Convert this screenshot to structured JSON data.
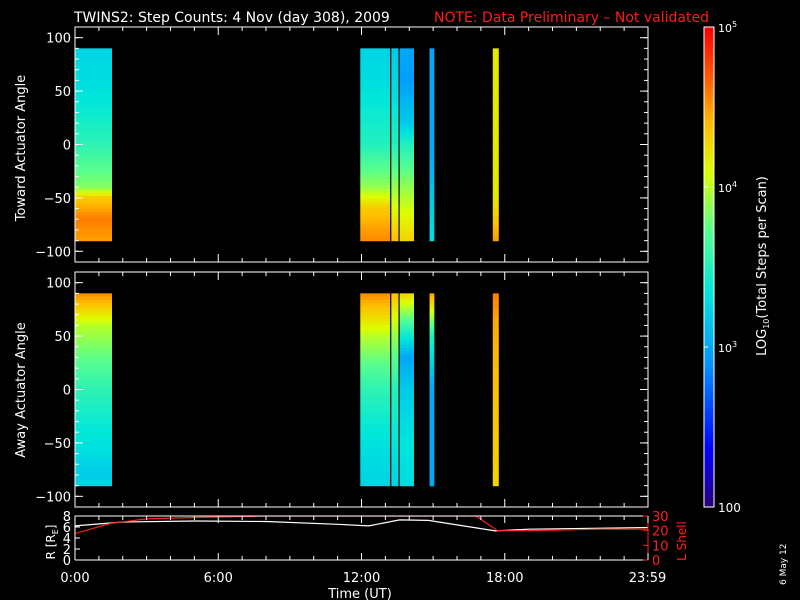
{
  "title": {
    "main": "TWINS2: Step Counts:  4 Nov (day 308), 2009",
    "note": "NOTE: Data Preliminary – Not validated",
    "note_color": "#ff1a1a"
  },
  "side_date": "6 May 12",
  "colors": {
    "background": "#000000",
    "axes": "#ffffff",
    "lshell": "#ff2020",
    "radius": "#ffffff"
  },
  "colorbar": {
    "label": "LOG10(Total Steps per Scan)",
    "label_prefix": "LOG",
    "label_sub": "10",
    "label_suffix": "(Total Steps per Scan)",
    "ticks": [
      {
        "label": "100",
        "value": 100
      },
      {
        "label": "10^3",
        "value": 1000
      },
      {
        "label": "10^4",
        "value": 10000
      },
      {
        "label": "10^5",
        "value": 100000
      }
    ],
    "scale": "log",
    "range": [
      100,
      100000
    ],
    "colormap": "rainbow"
  },
  "chart_data": [
    {
      "type": "heatmap",
      "panel": "top",
      "ylabel": "Toward Actuator Angle",
      "ylim": [
        -110,
        110
      ],
      "yticks": [
        "100",
        "50",
        "0",
        "−50",
        "−100"
      ],
      "ytick_values": [
        100,
        50,
        0,
        -50,
        -100
      ],
      "xlim_hours": [
        0,
        24
      ],
      "angle_range": [
        -88,
        90
      ],
      "intervals": [
        {
          "start": 0.0,
          "end": 1.55,
          "profile": [
            [
              90,
              3.25
            ],
            [
              60,
              3.3
            ],
            [
              30,
              3.4
            ],
            [
              0,
              3.55
            ],
            [
              -20,
              3.7
            ],
            [
              -40,
              3.85
            ],
            [
              -50,
              4.35
            ],
            [
              -70,
              4.6
            ],
            [
              -88,
              4.5
            ]
          ]
        },
        {
          "start": 11.95,
          "end": 13.2,
          "profile": [
            [
              90,
              3.25
            ],
            [
              60,
              3.3
            ],
            [
              30,
              3.4
            ],
            [
              0,
              3.5
            ],
            [
              -20,
              3.7
            ],
            [
              -40,
              3.9
            ],
            [
              -60,
              4.35
            ],
            [
              -88,
              4.55
            ]
          ]
        },
        {
          "start": 13.25,
          "end": 13.55,
          "profile": [
            [
              90,
              3.2
            ],
            [
              50,
              3.3
            ],
            [
              0,
              3.5
            ],
            [
              -40,
              3.9
            ],
            [
              -88,
              4.4
            ]
          ]
        },
        {
          "start": 13.6,
          "end": 14.2,
          "profile": [
            [
              90,
              3.0
            ],
            [
              60,
              2.95
            ],
            [
              20,
              3.2
            ],
            [
              0,
              3.5
            ],
            [
              -40,
              3.9
            ],
            [
              -88,
              4.3
            ]
          ]
        },
        {
          "start": 14.85,
          "end": 15.05,
          "profile": [
            [
              90,
              3.0
            ],
            [
              0,
              3.0
            ],
            [
              -88,
              3.3
            ]
          ]
        },
        {
          "start": 17.5,
          "end": 17.75,
          "profile": [
            [
              90,
              4.2
            ],
            [
              -50,
              4.2
            ],
            [
              -88,
              4.5
            ]
          ]
        }
      ]
    },
    {
      "type": "heatmap",
      "panel": "middle",
      "ylabel": "Away Actuator Angle",
      "ylim": [
        -110,
        110
      ],
      "yticks": [
        "100",
        "50",
        "0",
        "−50",
        "−100"
      ],
      "ytick_values": [
        100,
        50,
        0,
        -50,
        -100
      ],
      "xlim_hours": [
        0,
        24
      ],
      "angle_range": [
        -90,
        90
      ],
      "intervals": [
        {
          "start": 0.0,
          "end": 1.55,
          "profile": [
            [
              90,
              4.55
            ],
            [
              75,
              4.3
            ],
            [
              60,
              4.0
            ],
            [
              30,
              3.75
            ],
            [
              0,
              3.55
            ],
            [
              -30,
              3.4
            ],
            [
              -60,
              3.3
            ],
            [
              -80,
              3.2
            ],
            [
              -90,
              3.25
            ]
          ]
        },
        {
          "start": 11.95,
          "end": 13.2,
          "profile": [
            [
              90,
              4.55
            ],
            [
              70,
              4.3
            ],
            [
              50,
              4.0
            ],
            [
              20,
              3.7
            ],
            [
              0,
              3.55
            ],
            [
              -30,
              3.4
            ],
            [
              -60,
              3.3
            ],
            [
              -90,
              3.25
            ]
          ]
        },
        {
          "start": 13.25,
          "end": 13.55,
          "profile": [
            [
              90,
              4.4
            ],
            [
              50,
              3.9
            ],
            [
              0,
              3.5
            ],
            [
              -90,
              3.25
            ]
          ]
        },
        {
          "start": 13.6,
          "end": 14.2,
          "profile": [
            [
              90,
              4.3
            ],
            [
              60,
              3.6
            ],
            [
              30,
              3.0
            ],
            [
              0,
              3.2
            ],
            [
              -50,
              3.35
            ],
            [
              -90,
              3.3
            ]
          ]
        },
        {
          "start": 14.85,
          "end": 15.05,
          "profile": [
            [
              90,
              4.5
            ],
            [
              50,
              3.5
            ],
            [
              0,
              3.0
            ],
            [
              -90,
              3.0
            ]
          ]
        },
        {
          "start": 17.5,
          "end": 17.75,
          "profile": [
            [
              90,
              4.6
            ],
            [
              60,
              4.45
            ],
            [
              -90,
              4.3
            ]
          ]
        }
      ]
    },
    {
      "type": "line",
      "panel": "bottom",
      "xlabel": "Time (UT)",
      "xticks": [
        "0:00",
        "6:00",
        "12:00",
        "18:00",
        "23:59"
      ],
      "xtick_values": [
        0,
        6,
        12,
        18,
        23.98
      ],
      "xlim": [
        0,
        24
      ],
      "left_axis": {
        "label": "R [Rₑ]",
        "label_main": "R [R",
        "label_sub": "E",
        "label_end": "]",
        "ticks": [
          "0",
          "2",
          "4",
          "6",
          "8"
        ],
        "ylim": [
          0,
          8
        ]
      },
      "right_axis": {
        "label": "L Shell",
        "ticks": [
          "0",
          "10",
          "20",
          "30"
        ],
        "ylim": [
          0,
          30
        ]
      },
      "series": [
        {
          "name": "R",
          "axis": "left",
          "x": [
            0,
            2,
            5,
            8,
            11,
            12.3,
            13.6,
            14.8,
            17.6,
            19,
            24
          ],
          "y": [
            6.2,
            6.9,
            7.1,
            7.0,
            6.5,
            6.2,
            7.3,
            7.2,
            5.3,
            5.6,
            5.9
          ]
        },
        {
          "name": "L Shell",
          "axis": "right",
          "x": [
            0,
            1.5,
            3,
            5,
            8,
            16.8,
            17.7,
            19,
            22,
            24
          ],
          "y": [
            18,
            25,
            28,
            29,
            30,
            30,
            20,
            20,
            21,
            21
          ]
        }
      ]
    }
  ]
}
